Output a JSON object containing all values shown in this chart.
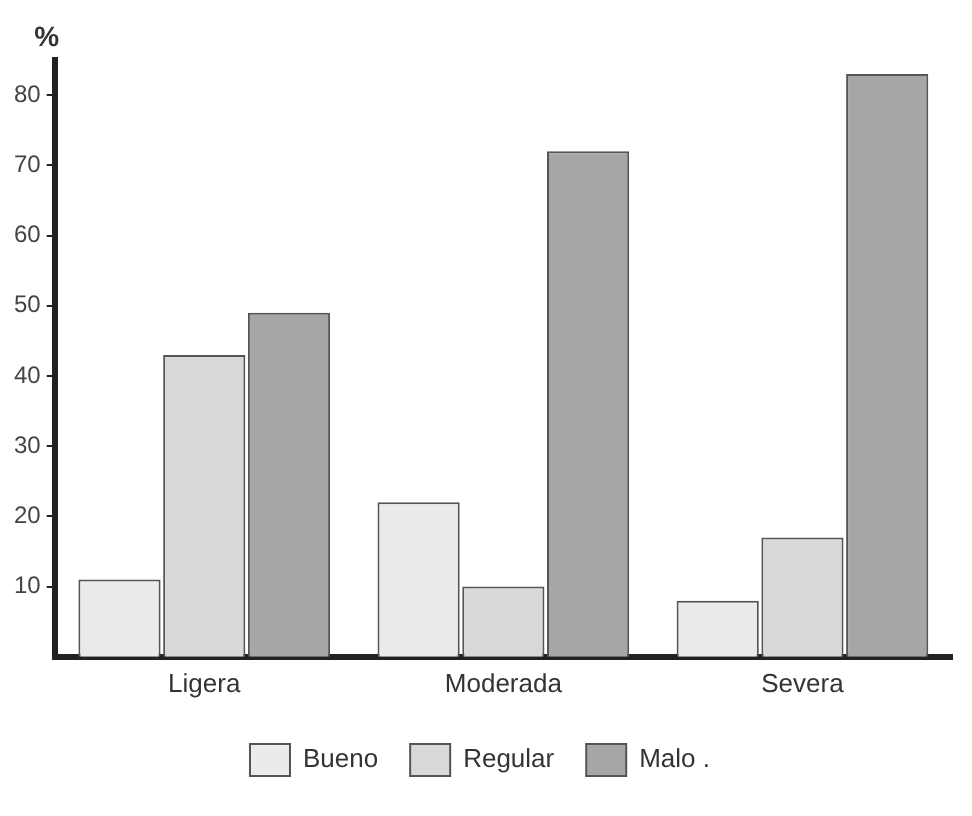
{
  "chart_data": {
    "type": "bar",
    "ylabel": "%",
    "categories": [
      "Ligera",
      "Moderada",
      "Severa"
    ],
    "series": [
      {
        "name": "Bueno",
        "color": "#ebebeb",
        "values": [
          11,
          22,
          8
        ]
      },
      {
        "name": "Regular",
        "color": "#d9d9d9",
        "values": [
          43,
          10,
          17
        ]
      },
      {
        "name": "Malo .",
        "color": "#a6a6a6",
        "values": [
          49,
          72,
          83
        ]
      }
    ],
    "ylim": [
      0,
      85
    ],
    "yticks": [
      10,
      20,
      30,
      40,
      50,
      60,
      70,
      80
    ],
    "grid": false,
    "legend": "bottom"
  }
}
